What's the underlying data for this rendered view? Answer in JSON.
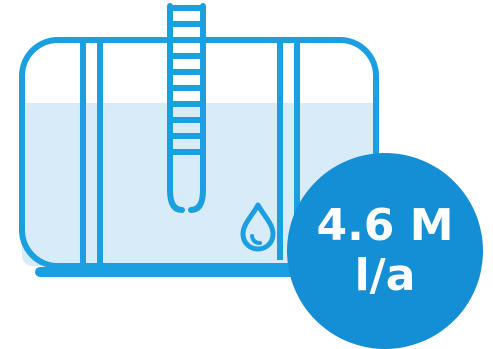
{
  "colors": {
    "outline": "#1aa0e0",
    "water": "#d7ecf8",
    "badge": "#148fd6",
    "badge_text": "#ffffff"
  },
  "icons": {
    "tank": "water-tank-icon",
    "ladder": "ladder-icon",
    "drop": "water-drop-icon"
  },
  "badge": {
    "line1": "4.6 M",
    "line2": "l/a"
  }
}
